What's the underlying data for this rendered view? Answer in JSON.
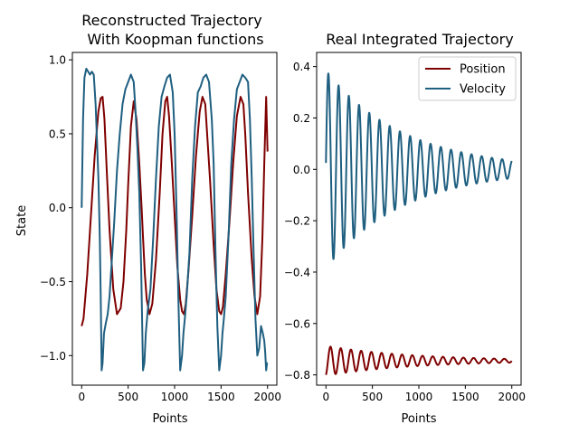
{
  "colors": {
    "position": "#7f0000",
    "velocity": "#1f5f80",
    "axes": "#000000",
    "background": "#ffffff"
  },
  "chart_data": [
    {
      "type": "line",
      "title": "Reconstructed Trajectory\n With Koopman functions",
      "title_lines": [
        "Reconstructed Trajectory",
        "With Koopman functions"
      ],
      "xlabel": "Points",
      "ylabel": "State",
      "xlim": [
        -100,
        2100
      ],
      "ylim": [
        -1.2,
        1.05
      ],
      "xticks": [
        0,
        500,
        1000,
        1500,
        2000
      ],
      "xtick_labels": [
        "0",
        "500",
        "1000",
        "1500",
        "2000"
      ],
      "yticks": [
        1.0,
        0.5,
        0.0,
        -0.5,
        -1.0
      ],
      "ytick_labels": [
        "1.0",
        "0.5",
        "0.0",
        "−0.5",
        "−1.0"
      ],
      "grid": false,
      "series": [
        {
          "name": "Position",
          "x": [
            0,
            20,
            60,
            100,
            140,
            180,
            205,
            225,
            245,
            270,
            300,
            340,
            380,
            420,
            450,
            480,
            500,
            530,
            560,
            590,
            620,
            645,
            660,
            680,
            700,
            730,
            760,
            800,
            840,
            870,
            900,
            920,
            940,
            970,
            1000,
            1030,
            1060,
            1080,
            1100,
            1120,
            1150,
            1190,
            1230,
            1270,
            1300,
            1330,
            1350,
            1380,
            1420,
            1450,
            1480,
            1500,
            1520,
            1550,
            1590,
            1630,
            1670,
            1710,
            1740,
            1760,
            1790,
            1830,
            1860,
            1890,
            1920,
            1945,
            1965,
            1985,
            2000
          ],
          "y": [
            -0.8,
            -0.75,
            -0.45,
            -0.05,
            0.35,
            0.65,
            0.74,
            0.75,
            0.6,
            0.25,
            -0.15,
            -0.55,
            -0.72,
            -0.68,
            -0.5,
            -0.15,
            0.15,
            0.55,
            0.72,
            0.6,
            0.3,
            0.0,
            -0.2,
            -0.45,
            -0.62,
            -0.72,
            -0.65,
            -0.35,
            0.1,
            0.5,
            0.72,
            0.75,
            0.62,
            0.3,
            -0.05,
            -0.4,
            -0.62,
            -0.7,
            -0.72,
            -0.65,
            -0.42,
            -0.05,
            0.35,
            0.65,
            0.75,
            0.7,
            0.5,
            0.2,
            -0.25,
            -0.55,
            -0.7,
            -0.72,
            -0.67,
            -0.45,
            -0.1,
            0.3,
            0.62,
            0.75,
            0.7,
            0.5,
            0.1,
            -0.35,
            -0.6,
            -0.72,
            -0.6,
            -0.2,
            0.3,
            0.75,
            0.38
          ]
        },
        {
          "name": "Velocity",
          "x": [
            0,
            15,
            30,
            50,
            70,
            90,
            110,
            130,
            150,
            165,
            180,
            195,
            205,
            215,
            225,
            240,
            260,
            280,
            300,
            320,
            350,
            380,
            410,
            440,
            470,
            500,
            530,
            560,
            580,
            600,
            620,
            640,
            660,
            675,
            690,
            710,
            740,
            770,
            800,
            830,
            860,
            890,
            920,
            950,
            980,
            1000,
            1020,
            1040,
            1060,
            1080,
            1095,
            1110,
            1130,
            1160,
            1190,
            1220,
            1250,
            1280,
            1310,
            1340,
            1370,
            1400,
            1420,
            1440,
            1460,
            1480,
            1500,
            1515,
            1530,
            1550,
            1580,
            1610,
            1640,
            1670,
            1700,
            1730,
            1760,
            1790,
            1810,
            1830,
            1850,
            1870,
            1890,
            1910,
            1930,
            1950,
            1965,
            1975,
            1985,
            1995,
            2000
          ],
          "y": [
            0.0,
            0.6,
            0.88,
            0.94,
            0.92,
            0.9,
            0.92,
            0.9,
            0.7,
            0.45,
            0.2,
            -0.2,
            -0.6,
            -1.1,
            -1.05,
            -0.85,
            -0.78,
            -0.72,
            -0.6,
            -0.4,
            -0.1,
            0.25,
            0.5,
            0.7,
            0.8,
            0.85,
            0.9,
            0.85,
            0.65,
            0.4,
            0.1,
            -0.4,
            -1.1,
            -1.05,
            -0.85,
            -0.7,
            -0.55,
            -0.2,
            0.2,
            0.55,
            0.75,
            0.82,
            0.88,
            0.9,
            0.78,
            0.5,
            0.0,
            -0.6,
            -1.1,
            -1.0,
            -0.85,
            -0.75,
            -0.6,
            -0.3,
            0.2,
            0.55,
            0.78,
            0.82,
            0.88,
            0.9,
            0.85,
            0.6,
            0.3,
            -0.3,
            -0.8,
            -1.1,
            -1.0,
            -0.85,
            -0.75,
            -0.6,
            -0.2,
            0.3,
            0.6,
            0.8,
            0.85,
            0.9,
            0.88,
            0.85,
            0.6,
            0.2,
            -0.3,
            -0.75,
            -1.0,
            -0.95,
            -0.8,
            -0.85,
            -0.9,
            -0.98,
            -1.1,
            -1.05,
            -1.05
          ]
        }
      ]
    },
    {
      "type": "line",
      "title": "Real Integrated Trajectory",
      "xlabel": "Points",
      "ylabel": "",
      "xlim": [
        -100,
        2100
      ],
      "ylim": [
        -0.84,
        0.455
      ],
      "xticks": [
        0,
        500,
        1000,
        1500,
        2000
      ],
      "xtick_labels": [
        "0",
        "500",
        "1000",
        "1500",
        "2000"
      ],
      "yticks": [
        0.4,
        0.2,
        0.0,
        -0.2,
        -0.4,
        -0.6,
        -0.8
      ],
      "ytick_labels": [
        "0.4",
        "0.2",
        "0.0",
        "−0.2",
        "−0.4",
        "−0.6",
        "−0.8"
      ],
      "legend_position": "top-right",
      "grid": false,
      "series": [
        {
          "name": "Position",
          "form": "damped-oscillation",
          "start": -0.8,
          "center": -0.745,
          "amplitude_start": 0.058,
          "amplitude_end": 0.007,
          "period": 110,
          "x_range": [
            0,
            2000
          ]
        },
        {
          "name": "Velocity",
          "form": "damped-oscillation",
          "start": 0.025,
          "center": 0.0,
          "amplitude_start": 0.385,
          "amplitude_end": 0.035,
          "period": 110,
          "x_range": [
            0,
            2000
          ],
          "end": -0.03
        }
      ]
    }
  ],
  "legend": {
    "entries": [
      "Position",
      "Velocity"
    ]
  }
}
